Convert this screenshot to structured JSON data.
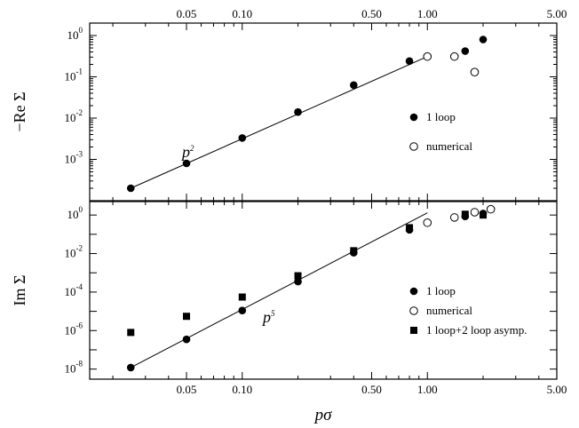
{
  "chart_data": [
    {
      "type": "scatter",
      "ylabel": "−Re Σ",
      "xlabel": "",
      "x_scale": "log",
      "y_scale": "log",
      "xlim": [
        0.015,
        5.0
      ],
      "ylim": [
        0.0001,
        2.0
      ],
      "x_ticks": [
        0.05,
        0.1,
        0.5,
        1.0,
        5.0
      ],
      "x_tick_labels": [
        "0.05",
        "0.10",
        "0.50",
        "1.00",
        "5.00"
      ],
      "y_ticks": [
        0.001,
        0.01,
        0.1,
        1
      ],
      "y_tick_labels": [
        {
          "base": "10",
          "exp": "-3"
        },
        {
          "base": "10",
          "exp": "-2"
        },
        {
          "base": "10",
          "exp": "-1"
        },
        {
          "base": "10",
          "exp": "0"
        }
      ],
      "annotation": {
        "base": "p",
        "exp": "2"
      },
      "fit_line": {
        "x": [
          0.025,
          1.0
        ],
        "y": [
          0.0002,
          0.31
        ]
      },
      "legend_position": "right",
      "series": [
        {
          "name": "1 loop",
          "marker": "filled-circle",
          "x": [
            0.025,
            0.05,
            0.1,
            0.2,
            0.4,
            0.8,
            1.6,
            2.0
          ],
          "y": [
            0.0002,
            0.0008,
            0.0033,
            0.014,
            0.063,
            0.24,
            0.42,
            0.8
          ]
        },
        {
          "name": "numerical",
          "marker": "open-circle",
          "x": [
            1.0,
            1.4,
            1.8
          ],
          "y": [
            0.31,
            0.31,
            0.13
          ]
        }
      ]
    },
    {
      "type": "scatter",
      "ylabel": "Im Σ",
      "xlabel": "pσ",
      "x_scale": "log",
      "y_scale": "log",
      "xlim": [
        0.015,
        5.0
      ],
      "ylim": [
        3e-09,
        5.0
      ],
      "x_ticks": [
        0.05,
        0.1,
        0.5,
        1.0,
        5.0
      ],
      "x_tick_labels": [
        "0.05",
        "0.10",
        "0.50",
        "1.00",
        "5.00"
      ],
      "y_ticks": [
        1e-08,
        1e-06,
        0.0001,
        0.01,
        1
      ],
      "y_tick_labels": [
        {
          "base": "10",
          "exp": "-8"
        },
        {
          "base": "10",
          "exp": "-6"
        },
        {
          "base": "10",
          "exp": "-4"
        },
        {
          "base": "10",
          "exp": "-2"
        },
        {
          "base": "10",
          "exp": "0"
        }
      ],
      "annotation": {
        "base": "p",
        "exp": "5"
      },
      "fit_line": {
        "x": [
          0.025,
          1.0
        ],
        "y": [
          1.2e-08,
          1.3
        ]
      },
      "legend_position": "right",
      "series": [
        {
          "name": "1 loop",
          "marker": "filled-circle",
          "x": [
            0.025,
            0.05,
            0.1,
            0.2,
            0.4,
            0.8,
            1.6,
            2.0
          ],
          "y": [
            1.2e-08,
            3.5e-07,
            1.1e-05,
            0.00035,
            0.011,
            0.17,
            0.85,
            1.2
          ]
        },
        {
          "name": "numerical",
          "marker": "open-circle",
          "x": [
            1.0,
            1.4,
            1.8,
            2.2
          ],
          "y": [
            0.4,
            0.75,
            1.4,
            2.0
          ]
        },
        {
          "name": "1 loop+2 loop asymp.",
          "marker": "filled-square",
          "x": [
            0.025,
            0.05,
            0.1,
            0.2,
            0.4,
            0.8,
            1.6,
            2.0
          ],
          "y": [
            8e-07,
            5.5e-06,
            5.5e-05,
            0.0007,
            0.014,
            0.22,
            1.1,
            1.0
          ]
        }
      ]
    }
  ]
}
